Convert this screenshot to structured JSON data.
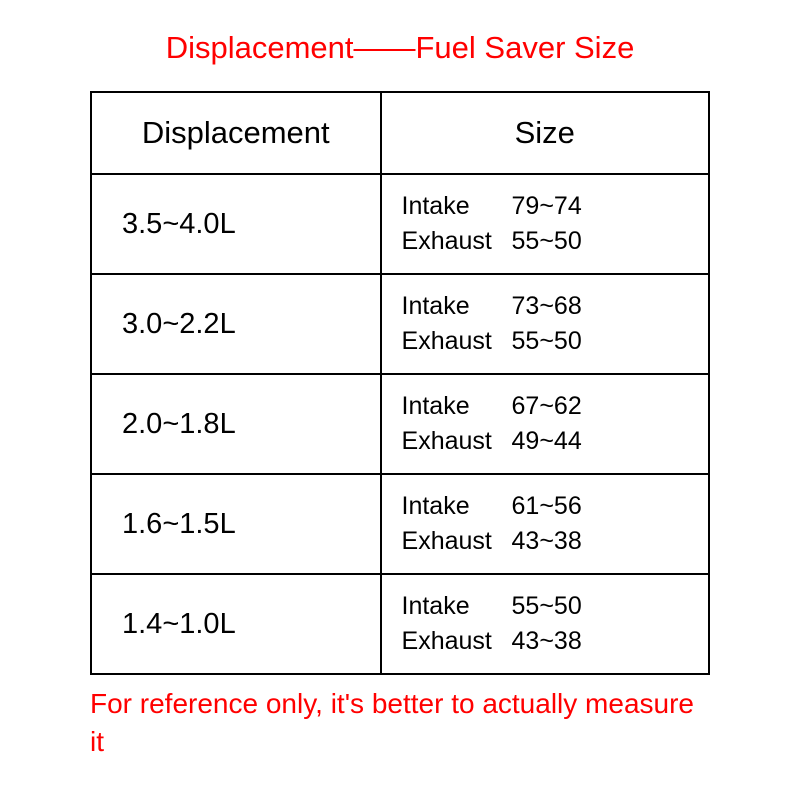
{
  "title": "Displacement——Fuel Saver Size",
  "headers": {
    "left": "Displacement",
    "right": "Size"
  },
  "rows": [
    {
      "displacement": "3.5~4.0L",
      "intake_label": "Intake",
      "intake_value": "79~74",
      "exhaust_label": "Exhaust",
      "exhaust_value": "55~50"
    },
    {
      "displacement": "3.0~2.2L",
      "intake_label": "Intake",
      "intake_value": "73~68",
      "exhaust_label": "Exhaust",
      "exhaust_value": "55~50"
    },
    {
      "displacement": "2.0~1.8L",
      "intake_label": "Intake",
      "intake_value": "67~62",
      "exhaust_label": "Exhaust",
      "exhaust_value": "49~44"
    },
    {
      "displacement": "1.6~1.5L",
      "intake_label": "Intake",
      "intake_value": "61~56",
      "exhaust_label": "Exhaust",
      "exhaust_value": "43~38"
    },
    {
      "displacement": "1.4~1.0L",
      "intake_label": "Intake",
      "intake_value": "55~50",
      "exhaust_label": "Exhaust",
      "exhaust_value": "43~38"
    }
  ],
  "footer": "For reference only, it's better to actually measure it",
  "colors": {
    "accent": "#ff0000",
    "border": "#000000",
    "text": "#000000",
    "background": "#ffffff"
  },
  "typography": {
    "title_fontsize": 31,
    "header_fontsize": 31,
    "displacement_fontsize": 29,
    "size_fontsize": 25,
    "footer_fontsize": 28
  },
  "layout": {
    "border_width": 2.5,
    "left_column_width_pct": 47,
    "right_column_width_pct": 53
  }
}
